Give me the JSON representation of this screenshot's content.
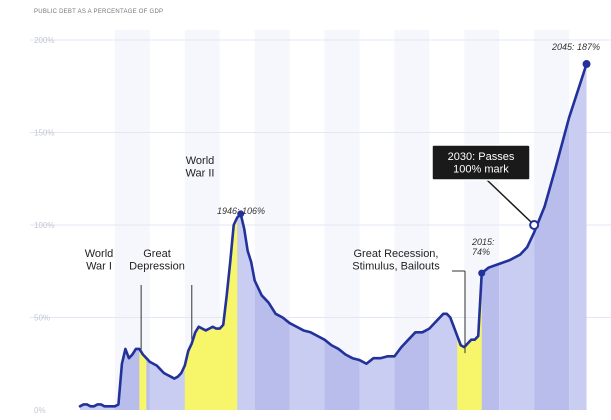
{
  "chart_data": {
    "type": "area",
    "title": "PUBLIC DEBT AS A PERCENTAGE OF GDP",
    "y_ticks": [
      "0%",
      "50%",
      "100%",
      "150%",
      "200%"
    ],
    "ylim": [
      0,
      200
    ],
    "xlim": [
      1900,
      2050
    ],
    "grid": true,
    "colors": {
      "line": "#23319a",
      "fill": "#c9cdf2",
      "fill_alt": "#b8bdec",
      "highlight": "#f7f56a",
      "grid": "#e3e6f4",
      "callout_bg": "#1a1a1a",
      "callout_text": "#ffffff"
    },
    "series": [
      {
        "values_x": [
          1900,
          1901,
          1902,
          1903,
          1904,
          1905,
          1906,
          1907,
          1908,
          1909,
          1910,
          1911,
          1912,
          1913,
          1914,
          1915,
          1916,
          1917,
          1918,
          1919,
          1920,
          1921,
          1922,
          1923,
          1924,
          1925,
          1926,
          1927,
          1928,
          1929,
          1930,
          1931,
          1932,
          1933,
          1934,
          1935,
          1936,
          1937,
          1938,
          1939,
          1940,
          1941,
          1942,
          1943,
          1944,
          1945,
          1946,
          1947,
          1948,
          1949,
          1950,
          1952,
          1954,
          1956,
          1958,
          1960,
          1962,
          1964,
          1966,
          1968,
          1970,
          1972,
          1974,
          1976,
          1978,
          1980,
          1982,
          1984,
          1986,
          1988,
          1990,
          1992,
          1994,
          1996,
          1998,
          2000,
          2001,
          2002,
          2003,
          2004,
          2005,
          2006,
          2007,
          2008,
          2009,
          2010,
          2011,
          2012,
          2013,
          2014,
          2015,
          2017,
          2020,
          2023,
          2026,
          2028,
          2030,
          2033,
          2036,
          2040,
          2045
        ],
        "values_y": [
          2,
          3,
          3,
          2,
          2,
          3,
          3,
          2,
          2,
          2,
          2,
          3,
          25,
          33,
          28,
          30,
          33,
          33,
          30,
          28,
          26,
          25,
          24,
          22,
          20,
          19,
          18,
          17,
          18,
          20,
          24,
          32,
          36,
          42,
          45,
          44,
          43,
          44,
          45,
          44,
          44,
          46,
          62,
          80,
          100,
          104,
          106,
          98,
          86,
          80,
          70,
          62,
          58,
          52,
          50,
          47,
          45,
          43,
          42,
          40,
          38,
          35,
          33,
          30,
          28,
          27,
          25,
          28,
          28,
          29,
          29,
          34,
          38,
          42,
          42,
          44,
          46,
          48,
          50,
          52,
          52,
          50,
          45,
          40,
          35,
          34,
          36,
          38,
          38,
          40,
          74,
          77,
          79,
          81,
          84,
          88,
          96,
          110,
          130,
          158,
          187
        ]
      }
    ],
    "highlight_ranges": [
      [
        1917,
        1919
      ],
      [
        1930,
        1945
      ],
      [
        2008,
        2015
      ]
    ],
    "annotations": {
      "ww1": [
        "World",
        "War I"
      ],
      "depression": [
        "Great",
        "Depression"
      ],
      "ww2": [
        "World",
        "War II"
      ],
      "peak1946": "1946: 106%",
      "recession": [
        "Great Recession,",
        "Stimulus, Bailouts"
      ],
      "y2015": [
        "2015:",
        "74%"
      ],
      "callout2030": [
        "2030: Passes",
        "100% mark"
      ],
      "y2045": "2045: 187%"
    }
  }
}
